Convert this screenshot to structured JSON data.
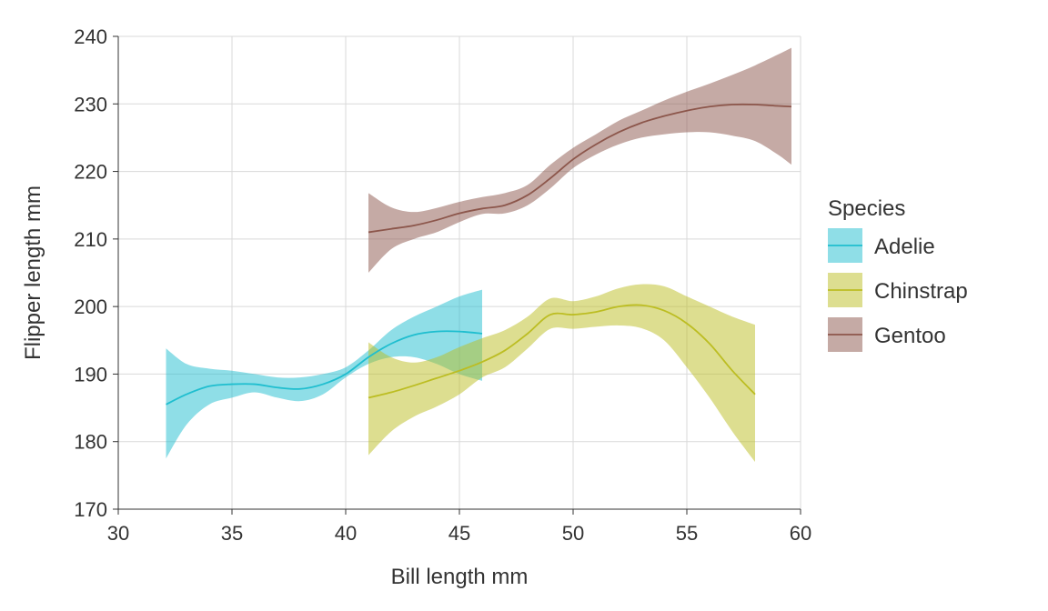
{
  "chart_data": {
    "type": "line",
    "xlabel": "Bill length mm",
    "ylabel": "Flipper length mm",
    "xlim": [
      30,
      60
    ],
    "ylim": [
      170,
      240
    ],
    "x_ticks": [
      30,
      35,
      40,
      45,
      50,
      55,
      60
    ],
    "y_ticks": [
      170,
      180,
      190,
      200,
      210,
      220,
      230,
      240
    ],
    "grid": true,
    "legend": {
      "title": "Species",
      "placement": "right"
    },
    "series": [
      {
        "name": "Adelie",
        "color": "#1FBECF",
        "x": [
          32.1,
          33,
          34,
          35,
          36,
          37,
          38,
          39,
          40,
          41,
          42,
          43,
          44,
          45,
          46
        ],
        "y": [
          185.5,
          187,
          188.2,
          188.5,
          188.5,
          188,
          187.8,
          188.5,
          190,
          192.5,
          194.5,
          195.8,
          196.3,
          196.3,
          196
        ],
        "lower": [
          177.5,
          182.5,
          185.5,
          186.5,
          187.3,
          186.5,
          186,
          187,
          189.5,
          191.5,
          192.5,
          192.5,
          191.5,
          190,
          189
        ],
        "upper": [
          193.8,
          191.5,
          190.8,
          190.5,
          190,
          189.5,
          189.5,
          190,
          191,
          193.5,
          196.5,
          198.5,
          200,
          201.5,
          202.5
        ]
      },
      {
        "name": "Chinstrap",
        "color": "#BCBD22",
        "x": [
          41,
          42,
          43,
          44,
          45,
          46,
          47,
          48,
          49,
          50,
          51,
          52,
          53,
          54,
          55,
          56,
          57,
          58
        ],
        "y": [
          186.5,
          187.3,
          188.3,
          189.4,
          190.5,
          191.8,
          193.5,
          196,
          198.8,
          198.8,
          199.2,
          200,
          200.2,
          199.4,
          197.5,
          194.5,
          190.5,
          187
        ],
        "lower": [
          178,
          181.5,
          183.7,
          185.2,
          187,
          189.5,
          191,
          193.8,
          196.7,
          196.7,
          197,
          197.2,
          196.8,
          195,
          191,
          186.5,
          181.5,
          177
        ],
        "upper": [
          194.7,
          192.5,
          191.7,
          192.5,
          194,
          195.3,
          196.5,
          198.5,
          201.2,
          200.8,
          201.5,
          202.7,
          203.3,
          203,
          201.5,
          200,
          198.5,
          197.3
        ]
      },
      {
        "name": "Gentoo",
        "color": "#8C564B",
        "x": [
          41,
          42,
          43,
          44,
          45,
          46,
          47,
          48,
          49,
          50,
          51,
          52,
          53,
          54,
          55,
          56,
          57,
          58,
          59,
          59.6
        ],
        "y": [
          211,
          211.5,
          212,
          212.8,
          213.8,
          214.5,
          215,
          216.5,
          219,
          221.8,
          224,
          225.8,
          227.2,
          228.2,
          229,
          229.6,
          229.9,
          229.9,
          229.7,
          229.6
        ],
        "lower": [
          205,
          208.5,
          210,
          211,
          212.5,
          213.7,
          213.8,
          215,
          217.5,
          220.5,
          222.5,
          224,
          225,
          225.5,
          225.8,
          225.8,
          225.3,
          224.5,
          222.5,
          221
        ],
        "upper": [
          216.8,
          214.7,
          214,
          214.6,
          215.5,
          216.2,
          216.8,
          218,
          221,
          223.5,
          225.5,
          227.5,
          229,
          230.5,
          231.8,
          233,
          234.3,
          235.7,
          237.3,
          238.3
        ]
      }
    ]
  }
}
